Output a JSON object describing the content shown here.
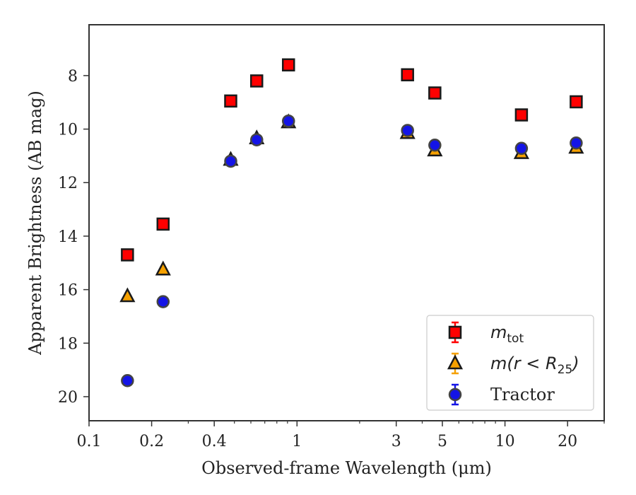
{
  "chart_data": {
    "type": "scatter",
    "xlabel": "Observed-frame Wavelength (μm)",
    "ylabel": "Apparent Brightness (AB mag)",
    "x_scale": "log",
    "xlim": [
      0.1,
      30
    ],
    "ylim": [
      20.9,
      6.1
    ],
    "y_inverted": true,
    "x_ticks": [
      {
        "value": 0.1,
        "label": "0.1"
      },
      {
        "value": 0.2,
        "label": "0.2"
      },
      {
        "value": 0.4,
        "label": "0.4"
      },
      {
        "value": 1,
        "label": "1"
      },
      {
        "value": 3,
        "label": "3"
      },
      {
        "value": 5,
        "label": "5"
      },
      {
        "value": 10,
        "label": "10"
      },
      {
        "value": 20,
        "label": "20"
      }
    ],
    "y_ticks": [
      {
        "value": 8,
        "label": "8"
      },
      {
        "value": 10,
        "label": "10"
      },
      {
        "value": 12,
        "label": "12"
      },
      {
        "value": 14,
        "label": "14"
      },
      {
        "value": 16,
        "label": "16"
      },
      {
        "value": 18,
        "label": "18"
      },
      {
        "value": 20,
        "label": "20"
      }
    ],
    "grid": false,
    "legend_position": "bottom-right",
    "series": [
      {
        "name": "m_tot",
        "legend_label": {
          "base": "m",
          "sub": "tot"
        },
        "marker": "square",
        "color": "#ff0000",
        "edge_color": "#1a1a1a",
        "errorbar_color": "#ff0000",
        "x": [
          0.153,
          0.227,
          0.48,
          0.64,
          0.91,
          3.4,
          4.6,
          12,
          22
        ],
        "y": [
          14.7,
          13.55,
          8.95,
          8.2,
          7.6,
          7.97,
          8.65,
          9.47,
          8.98
        ]
      },
      {
        "name": "m(r < R_25)",
        "legend_label": {
          "base": "m(r < R",
          "sub": "25",
          "tail": ")"
        },
        "marker": "triangle",
        "color": "#f5a000",
        "edge_color": "#1a1a1a",
        "errorbar_color": "#f5a000",
        "x": [
          0.153,
          0.227,
          0.48,
          0.64,
          0.91,
          3.4,
          4.6,
          12,
          22
        ],
        "y": [
          16.25,
          15.25,
          11.15,
          10.35,
          9.75,
          10.15,
          10.8,
          10.9,
          10.7
        ]
      },
      {
        "name": "Tractor",
        "legend_label": {
          "base": "Tractor"
        },
        "marker": "circle",
        "color": "#1414e6",
        "edge_color": "#444444",
        "errorbar_color": "#1414e6",
        "x": [
          0.153,
          0.227,
          0.48,
          0.64,
          0.91,
          3.4,
          4.6,
          12,
          22
        ],
        "y": [
          19.4,
          16.45,
          11.2,
          10.4,
          9.7,
          10.05,
          10.6,
          10.72,
          10.52
        ]
      }
    ]
  }
}
